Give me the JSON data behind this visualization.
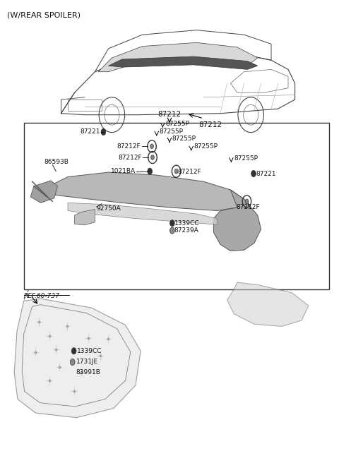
{
  "title": "(W/REAR SPOILER)",
  "bg_color": "#ffffff",
  "text_color": "#111111",
  "fig_width": 4.8,
  "fig_height": 6.56,
  "dpi": 100,
  "car_label": "87212",
  "box_label": "87212"
}
